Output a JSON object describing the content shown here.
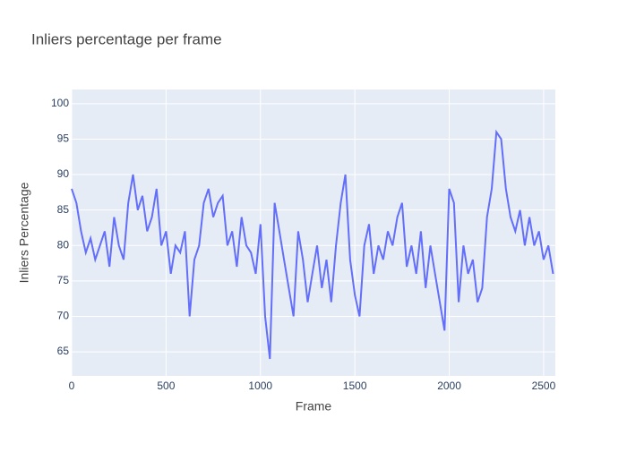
{
  "chart_data": {
    "type": "line",
    "title": "Inliers percentage per frame",
    "x_label": "Frame",
    "y_label": "Inliers Percentage",
    "x": [
      0,
      25,
      50,
      75,
      100,
      125,
      150,
      175,
      200,
      225,
      250,
      275,
      300,
      325,
      350,
      375,
      400,
      425,
      450,
      475,
      500,
      525,
      550,
      575,
      600,
      625,
      650,
      675,
      700,
      725,
      750,
      775,
      800,
      825,
      850,
      875,
      900,
      925,
      950,
      975,
      1000,
      1025,
      1050,
      1075,
      1100,
      1125,
      1150,
      1175,
      1200,
      1225,
      1250,
      1275,
      1300,
      1325,
      1350,
      1375,
      1400,
      1425,
      1450,
      1475,
      1500,
      1525,
      1550,
      1575,
      1600,
      1625,
      1650,
      1675,
      1700,
      1725,
      1750,
      1775,
      1800,
      1825,
      1850,
      1875,
      1900,
      1925,
      1950,
      1975,
      2000,
      2025,
      2050,
      2075,
      2100,
      2125,
      2150,
      2175,
      2200,
      2225,
      2250,
      2275,
      2300,
      2325,
      2350,
      2375,
      2400,
      2425,
      2450,
      2475,
      2500,
      2525,
      2550
    ],
    "series": [
      {
        "name": "Inliers Percentage",
        "color": "#636efa",
        "values": [
          88,
          86,
          82,
          79,
          81,
          78,
          80,
          82,
          77,
          84,
          80,
          78,
          86,
          90,
          85,
          87,
          82,
          84,
          88,
          80,
          82,
          76,
          80,
          79,
          82,
          70,
          78,
          80,
          86,
          88,
          84,
          86,
          87,
          80,
          82,
          77,
          84,
          80,
          79,
          76,
          83,
          70,
          64,
          86,
          82,
          78,
          74,
          70,
          82,
          78,
          72,
          76,
          80,
          74,
          78,
          72,
          80,
          86,
          90,
          78,
          73,
          70,
          80,
          83,
          76,
          80,
          78,
          82,
          80,
          84,
          86,
          77,
          80,
          76,
          82,
          74,
          80,
          76,
          72,
          68,
          88,
          86,
          72,
          80,
          76,
          78,
          72,
          74,
          84,
          88,
          96,
          95,
          88,
          84,
          82,
          85,
          80,
          84,
          80,
          82,
          78,
          80,
          76
        ]
      }
    ],
    "xlim": [
      0,
      2562
    ],
    "ylim": [
      61.6,
      102
    ],
    "xticks": [
      0,
      500,
      1000,
      1500,
      2000,
      2500
    ],
    "yticks": [
      65,
      70,
      75,
      80,
      85,
      90,
      95,
      100
    ],
    "grid": true
  }
}
